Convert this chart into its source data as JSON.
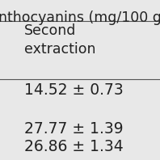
{
  "background_color": "#e8e8e8",
  "header_text": "nthocyanins (mg/100 g",
  "column_header": "Second\nextraction",
  "rows": [
    "14.52 ± 0.73",
    "",
    "27.77 ± 1.39",
    "26.86 ± 1.34"
  ],
  "header_line_color": "#555555",
  "text_color": "#222222",
  "font_size_header": 12.5,
  "font_size_col": 12.5,
  "font_size_data": 13.5,
  "fig_width": 1.98,
  "fig_height": 1.98,
  "dpi": 100
}
